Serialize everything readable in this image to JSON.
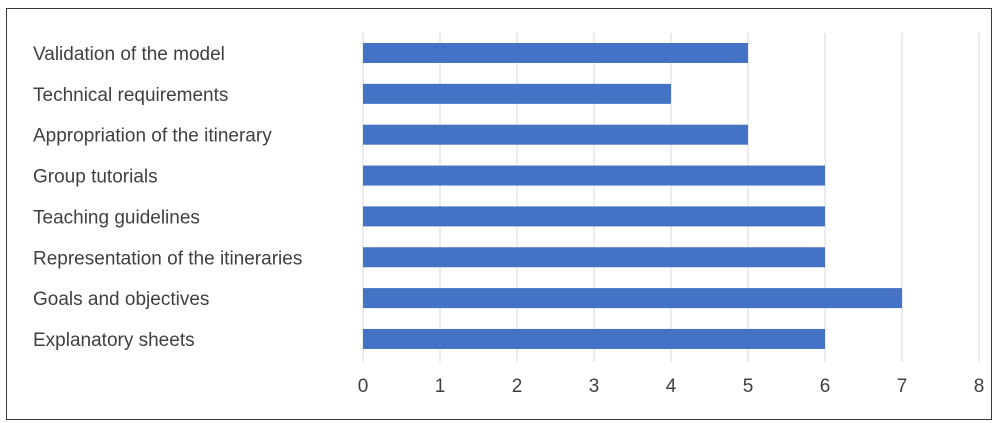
{
  "chart_data": {
    "type": "bar",
    "orientation": "horizontal",
    "categories": [
      "Validation of the model",
      "Technical requirements",
      "Appropriation of the itinerary",
      "Group tutorials",
      "Teaching guidelines",
      "Representation of the itineraries",
      "Goals and objectives",
      "Explanatory sheets"
    ],
    "values": [
      5,
      4,
      5,
      6,
      6,
      6,
      7,
      6
    ],
    "xlim": [
      0,
      8
    ],
    "xticks": [
      "0",
      "1",
      "2",
      "3",
      "4",
      "5",
      "6",
      "7",
      "8"
    ],
    "grid": true,
    "bar_color": "#4472C4",
    "grid_color": "#d9d9d9",
    "title": "",
    "xlabel": "",
    "ylabel": ""
  }
}
